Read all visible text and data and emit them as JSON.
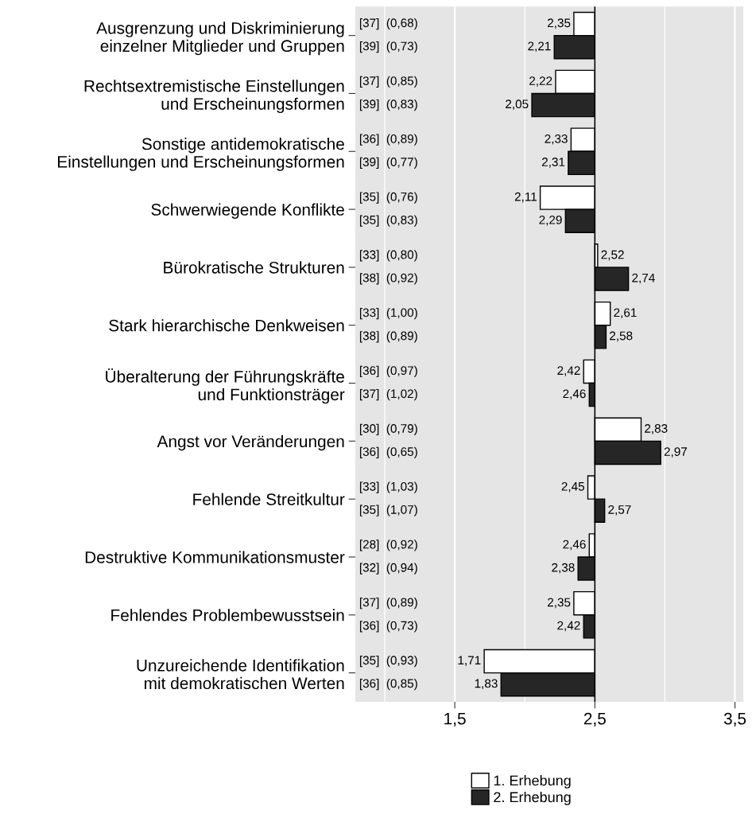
{
  "chart_data": {
    "type": "bar",
    "orientation": "horizontal",
    "categories": [
      "Ausgrenzung und Diskriminierung\neinzelner Mitglieder und Gruppen",
      "Rechtsextremistische Einstellungen\nund Erscheinungsformen",
      "Sonstige antidemokratische\nEinstellungen und Erscheinungsformen",
      "Schwerwiegende Konflikte",
      "Bürokratische Strukturen",
      "Stark hierarchische Denkweisen",
      "Überalterung der Führungskräfte\nund Funktionsträger",
      "Angst vor Veränderungen",
      "Fehlende Streitkultur",
      "Destruktive Kommunikationsmuster",
      "Fehlendes Problembewusstsein",
      "Unzureichende Identifikation\nmit demokratischen Werten"
    ],
    "series": [
      {
        "name": "1. Erhebung",
        "color": "#ffffff",
        "base": [
          2.5,
          2.5,
          2.5,
          2.5,
          2.5,
          2.5,
          2.5,
          2.5,
          2.5,
          2.5,
          2.5,
          2.5
        ],
        "values": [
          -0.15,
          -0.28,
          -0.17,
          -0.39,
          0.02,
          0.11,
          -0.08,
          0.33,
          -0.05,
          -0.04,
          -0.15,
          -0.79
        ],
        "value_labels": [
          "2,35",
          "2,22",
          "2,33",
          "2,11",
          "2,52",
          "2,61",
          "2,42",
          "2,83",
          "2,45",
          "2,46",
          "2,35",
          "1,71"
        ]
      },
      {
        "name": "2. Erhebung",
        "color": "#262626",
        "base": [
          2.5,
          2.5,
          2.5,
          2.5,
          2.5,
          2.5,
          2.5,
          2.5,
          2.5,
          2.5,
          2.5,
          2.5
        ],
        "values": [
          -0.29,
          -0.45,
          -0.19,
          -0.21,
          0.24,
          0.08,
          -0.04,
          0.47,
          0.07,
          -0.12,
          -0.08,
          -0.67
        ],
        "value_labels": [
          "2,21",
          "2,05",
          "2,31",
          "2,29",
          "2,74",
          "2,58",
          "2,46",
          "2,97",
          "2,57",
          "2,38",
          "2,42",
          "1,83"
        ]
      }
    ],
    "annotations": [
      "[37]  (0,68)",
      "[39]  (0,73)",
      "[37]  (0,85)",
      "[39]  (0,83)",
      "[36]  (0,89)",
      "[39]  (0,77)",
      "[35]  (0,76)",
      "[35]  (0,83)",
      "[33]  (0,80)",
      "[38]  (0,92)",
      "[33]  (1,00)",
      "[38]  (0,89)",
      "[36]  (0,97)",
      "[37]  (1,02)",
      "[30]  (0,79)",
      "[36]  (0,65)",
      "[33]  (1,03)",
      "[35]  (1,07)",
      "[28]  (0,92)",
      "[32]  (0,94)",
      "[37]  (0,89)",
      "[36]  (0,73)",
      "[35]  (0,93)",
      "[36]  (0,85)"
    ],
    "xlim": [
      0.79,
      3.56
    ],
    "xticks": [
      {
        "value": 1.0,
        "label": null
      },
      {
        "value": 1.5,
        "label": "1,5"
      },
      {
        "value": 2.0,
        "label": null
      },
      {
        "value": 2.5,
        "label": "2,5"
      },
      {
        "value": 3.0,
        "label": null
      },
      {
        "value": 3.5,
        "label": "3,5"
      }
    ],
    "ref_lines": [
      {
        "axis": "x",
        "value": 2.5,
        "color": "#000000"
      }
    ],
    "grid": "x",
    "legend": "bottom"
  }
}
